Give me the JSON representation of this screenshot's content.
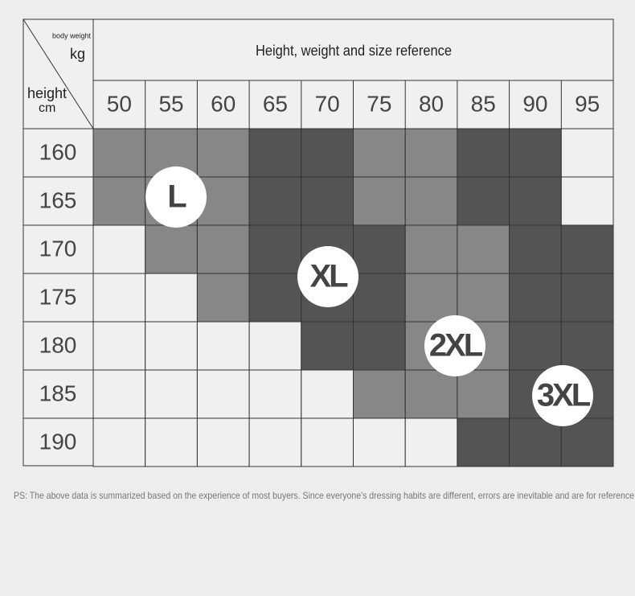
{
  "header": {
    "title": "Height, weight and size reference",
    "corner_weight": "body weight",
    "corner_weight_unit": "kg",
    "corner_height": "height",
    "corner_height_unit": "cm"
  },
  "table": {
    "weights": [
      50,
      55,
      60,
      65,
      70,
      75,
      80,
      85,
      90,
      95
    ],
    "heights": [
      160,
      165,
      170,
      175,
      180,
      185,
      190
    ]
  },
  "size_labels": [
    "L",
    "XL",
    "2XL",
    "3XL"
  ],
  "footnote": "PS: The above data is summarized based on the experience of most buyers. Since everyone's dressing habits are different, errors are inevitable and are for reference"
}
